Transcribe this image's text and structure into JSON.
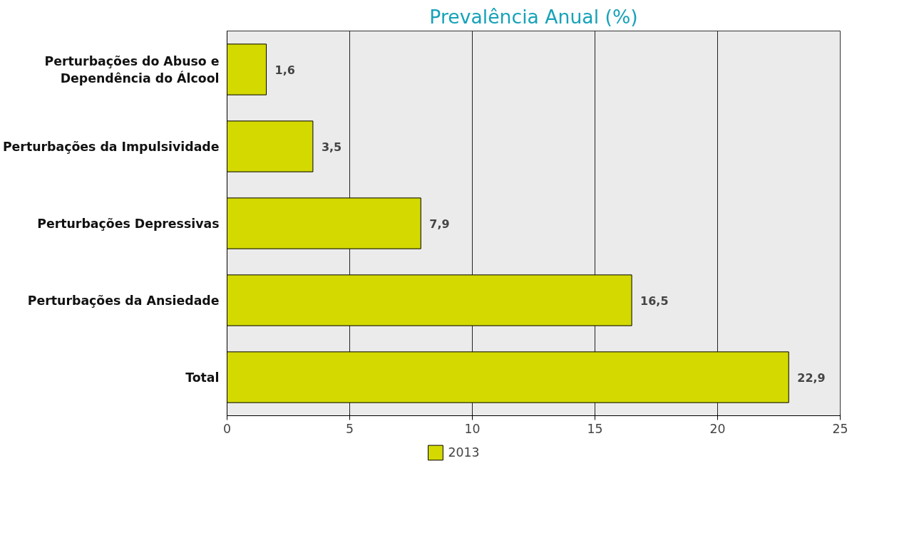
{
  "chart_data": {
    "type": "bar",
    "orientation": "horizontal",
    "title": "Prevalência Anual (%)",
    "categories": [
      "Perturbações do Abuso e Dependência do Álcool",
      "Perturbações da Impulsividade",
      "Perturbações Depressivas",
      "Perturbações da Ansiedade",
      "Total"
    ],
    "series": [
      {
        "name": "2013",
        "color": "#d4d900",
        "values": [
          1.6,
          3.5,
          7.9,
          16.5,
          22.9
        ]
      }
    ],
    "value_labels": [
      "1,6",
      "3,5",
      "7,9",
      "16,5",
      "22,9"
    ],
    "xlim": [
      0,
      25
    ],
    "xticks": [
      0,
      5,
      10,
      15,
      20,
      25
    ],
    "grid": "x",
    "legend": "bottom"
  }
}
